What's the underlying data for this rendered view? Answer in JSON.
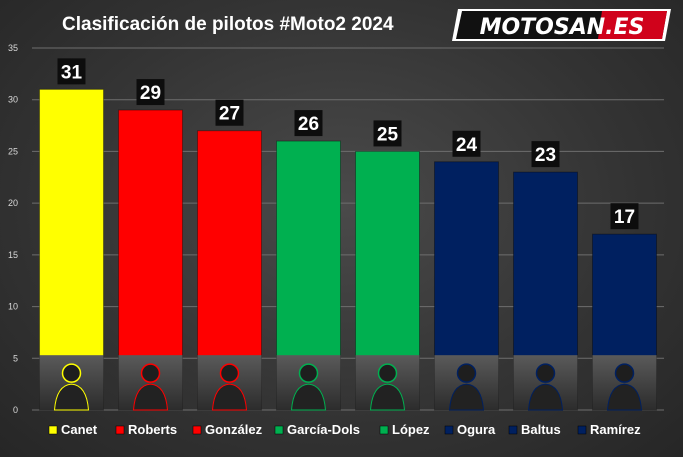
{
  "title": "Clasificación de pilotos #Moto2 2024",
  "logo_text": "MOTOSAN.ES",
  "chart_data": {
    "type": "bar",
    "title": "Clasificación de pilotos #Moto2 2024",
    "categories": [
      "Canet",
      "Roberts",
      "González",
      "García-Dols",
      "López",
      "Ogura",
      "Baltus",
      "Ramírez"
    ],
    "values": [
      31,
      29,
      27,
      26,
      25,
      24,
      23,
      17
    ],
    "colors": [
      "#ffff00",
      "#ff0000",
      "#ff0000",
      "#00b050",
      "#00b050",
      "#002060",
      "#002060",
      "#002060"
    ],
    "ylim": [
      0,
      35
    ],
    "yticks": [
      0,
      5,
      10,
      15,
      20,
      25,
      30,
      35
    ],
    "grid": true,
    "legend_position": "bottom",
    "data_labels": true
  }
}
